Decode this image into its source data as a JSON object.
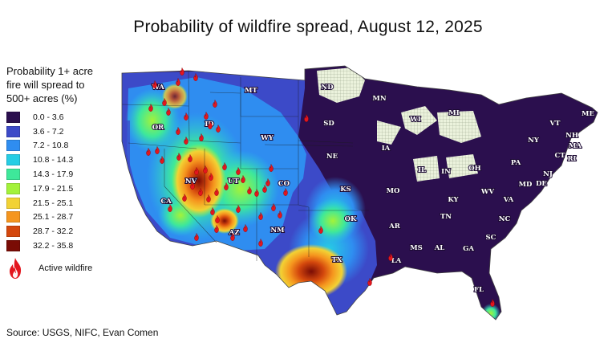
{
  "title": "Probability of wildfire spread, August 12, 2025",
  "legend": {
    "title_lines": [
      "Probability 1+ acre",
      "fire will spread to",
      "500+ acres (%)"
    ],
    "bins": [
      {
        "label": "0.0 - 3.6",
        "color": "#2b0f4e"
      },
      {
        "label": "3.6 - 7.2",
        "color": "#3c4ac8"
      },
      {
        "label": "7.2 - 10.8",
        "color": "#2f8df0"
      },
      {
        "label": "10.8 - 14.3",
        "color": "#26cde4"
      },
      {
        "label": "14.3 - 17.9",
        "color": "#3ee89a"
      },
      {
        "label": "17.9 - 21.5",
        "color": "#a3f23a"
      },
      {
        "label": "21.5 - 25.1",
        "color": "#f2d234"
      },
      {
        "label": "25.1 - 28.7",
        "color": "#f5951e"
      },
      {
        "label": "28.7 - 32.2",
        "color": "#d4480d"
      },
      {
        "label": "32.2 - 35.8",
        "color": "#7a0c05"
      }
    ],
    "active_wildfire_label": "Active wildfire",
    "fire_color": "#e3161e"
  },
  "source": "Source: USGS, NIFC, Evan Comen",
  "state_labels": [
    "WA",
    "OR",
    "CA",
    "NV",
    "ID",
    "MT",
    "WY",
    "UT",
    "AZ",
    "CO",
    "NM",
    "ND",
    "SD",
    "NE",
    "KS",
    "OK",
    "TX",
    "MN",
    "IA",
    "MO",
    "AR",
    "LA",
    "WI",
    "IL",
    "MI",
    "IN",
    "OH",
    "KY",
    "TN",
    "MS",
    "AL",
    "GA",
    "FL",
    "SC",
    "NC",
    "VA",
    "WV",
    "PA",
    "NY",
    "VT",
    "NH",
    "ME",
    "MA",
    "CT",
    "RI",
    "NJ",
    "DE",
    "MD"
  ],
  "no_data_fill": "#ebf2dc"
}
